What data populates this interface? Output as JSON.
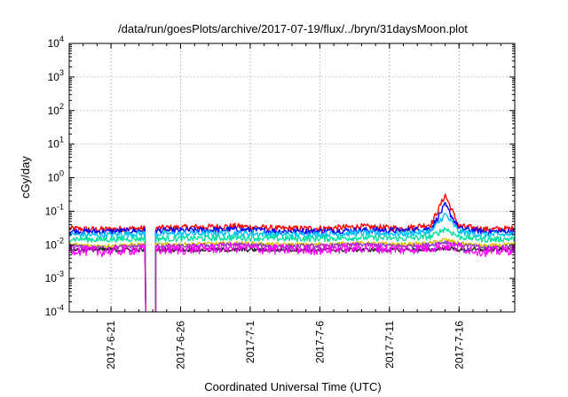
{
  "chart_data": {
    "type": "line",
    "title": "/data/run/goesPlots/archive/2017-07-19/flux/../bryn/31daysMoon.plot",
    "xlabel": "Coordinated Universal Time (UTC)",
    "ylabel": "cGy/day",
    "yscale": "log",
    "ylim": [
      0.0001,
      10000
    ],
    "xlim": [
      "2017-06-18T00:00",
      "2017-07-20T00:00"
    ],
    "grid": true,
    "legend": "none",
    "x_ticks": [
      "2017-6-21",
      "2017-6-26",
      "2017-7-1",
      "2017-7-6",
      "2017-7-11",
      "2017-7-16"
    ],
    "y_ticks": [
      {
        "base": "10",
        "exp": "-4"
      },
      {
        "base": "10",
        "exp": "-3"
      },
      {
        "base": "10",
        "exp": "-2"
      },
      {
        "base": "10",
        "exp": "-1"
      },
      {
        "base": "10",
        "exp": "0"
      },
      {
        "base": "10",
        "exp": "1"
      },
      {
        "base": "10",
        "exp": "2"
      },
      {
        "base": "10",
        "exp": "3"
      },
      {
        "base": "10",
        "exp": "4"
      }
    ],
    "gap": {
      "start": "2017-06-23T12:00",
      "end": "2017-06-24T04:00"
    },
    "series": [
      {
        "color": "#ff0000",
        "points": [
          [
            "2017-06-18",
            0.03
          ],
          [
            "2017-06-20",
            0.028
          ],
          [
            "2017-06-23",
            0.03
          ],
          [
            "2017-06-26",
            0.032
          ],
          [
            "2017-06-30",
            0.035
          ],
          [
            "2017-07-03",
            0.03
          ],
          [
            "2017-07-06",
            0.03
          ],
          [
            "2017-07-09",
            0.034
          ],
          [
            "2017-07-12",
            0.03
          ],
          [
            "2017-07-14",
            0.04
          ],
          [
            "2017-07-15",
            0.3
          ],
          [
            "2017-07-16",
            0.035
          ],
          [
            "2017-07-18",
            0.028
          ],
          [
            "2017-07-20",
            0.03
          ]
        ]
      },
      {
        "color": "#0000ff",
        "points": [
          [
            "2017-06-18",
            0.025
          ],
          [
            "2017-06-20",
            0.024
          ],
          [
            "2017-06-23",
            0.026
          ],
          [
            "2017-06-26",
            0.026
          ],
          [
            "2017-06-30",
            0.028
          ],
          [
            "2017-07-03",
            0.025
          ],
          [
            "2017-07-06",
            0.025
          ],
          [
            "2017-07-09",
            0.027
          ],
          [
            "2017-07-12",
            0.026
          ],
          [
            "2017-07-14",
            0.03
          ],
          [
            "2017-07-15",
            0.15
          ],
          [
            "2017-07-16",
            0.03
          ],
          [
            "2017-07-18",
            0.024
          ],
          [
            "2017-07-20",
            0.025
          ]
        ]
      },
      {
        "color": "#00c0ff",
        "points": [
          [
            "2017-06-18",
            0.02
          ],
          [
            "2017-06-20",
            0.019
          ],
          [
            "2017-06-23",
            0.021
          ],
          [
            "2017-06-26",
            0.021
          ],
          [
            "2017-06-30",
            0.022
          ],
          [
            "2017-07-03",
            0.02
          ],
          [
            "2017-07-06",
            0.02
          ],
          [
            "2017-07-09",
            0.022
          ],
          [
            "2017-07-12",
            0.021
          ],
          [
            "2017-07-14",
            0.024
          ],
          [
            "2017-07-15",
            0.08
          ],
          [
            "2017-07-16",
            0.024
          ],
          [
            "2017-07-18",
            0.019
          ],
          [
            "2017-07-20",
            0.02
          ]
        ]
      },
      {
        "color": "#00e0a0",
        "points": [
          [
            "2017-06-18",
            0.015
          ],
          [
            "2017-06-20",
            0.014
          ],
          [
            "2017-06-23",
            0.015
          ],
          [
            "2017-06-26",
            0.015
          ],
          [
            "2017-06-30",
            0.016
          ],
          [
            "2017-07-03",
            0.015
          ],
          [
            "2017-07-06",
            0.015
          ],
          [
            "2017-07-09",
            0.016
          ],
          [
            "2017-07-12",
            0.015
          ],
          [
            "2017-07-14",
            0.017
          ],
          [
            "2017-07-15",
            0.03
          ],
          [
            "2017-07-16",
            0.017
          ],
          [
            "2017-07-18",
            0.014
          ],
          [
            "2017-07-20",
            0.015
          ]
        ]
      },
      {
        "color": "#d8c000",
        "points": [
          [
            "2017-06-18",
            0.01
          ],
          [
            "2017-06-20",
            0.009
          ],
          [
            "2017-06-23",
            0.01
          ],
          [
            "2017-06-26",
            0.01
          ],
          [
            "2017-06-30",
            0.011
          ],
          [
            "2017-07-03",
            0.01
          ],
          [
            "2017-07-06",
            0.01
          ],
          [
            "2017-07-09",
            0.011
          ],
          [
            "2017-07-12",
            0.01
          ],
          [
            "2017-07-14",
            0.011
          ],
          [
            "2017-07-15",
            0.014
          ],
          [
            "2017-07-16",
            0.011
          ],
          [
            "2017-07-18",
            0.009
          ],
          [
            "2017-07-20",
            0.01
          ]
        ]
      },
      {
        "color": "#9040c0",
        "points": [
          [
            "2017-06-18",
            0.009
          ],
          [
            "2017-06-20",
            0.008
          ],
          [
            "2017-06-23",
            0.009
          ],
          [
            "2017-06-26",
            0.009
          ],
          [
            "2017-06-30",
            0.01
          ],
          [
            "2017-07-03",
            0.009
          ],
          [
            "2017-07-06",
            0.009
          ],
          [
            "2017-07-09",
            0.01
          ],
          [
            "2017-07-12",
            0.009
          ],
          [
            "2017-07-14",
            0.01
          ],
          [
            "2017-07-15",
            0.012
          ],
          [
            "2017-07-16",
            0.01
          ],
          [
            "2017-07-18",
            0.008
          ],
          [
            "2017-07-20",
            0.009
          ]
        ]
      },
      {
        "color": "#202020",
        "points": [
          [
            "2017-06-18",
            0.007
          ],
          [
            "2017-06-20",
            0.007
          ],
          [
            "2017-06-23",
            0.007
          ],
          [
            "2017-06-26",
            0.007
          ],
          [
            "2017-06-30",
            0.007
          ],
          [
            "2017-07-03",
            0.007
          ],
          [
            "2017-07-06",
            0.007
          ],
          [
            "2017-07-09",
            0.007
          ],
          [
            "2017-07-12",
            0.007
          ],
          [
            "2017-07-14",
            0.007
          ],
          [
            "2017-07-15",
            0.008
          ],
          [
            "2017-07-16",
            0.007
          ],
          [
            "2017-07-18",
            0.007
          ],
          [
            "2017-07-20",
            0.007
          ]
        ]
      },
      {
        "color": "#ff00ff",
        "points": [
          [
            "2017-06-18",
            0.007
          ],
          [
            "2017-06-20",
            0.006
          ],
          [
            "2017-06-23",
            0.007
          ],
          [
            "2017-06-26",
            0.007
          ],
          [
            "2017-06-30",
            0.008
          ],
          [
            "2017-07-03",
            0.007
          ],
          [
            "2017-07-06",
            0.007
          ],
          [
            "2017-07-09",
            0.008
          ],
          [
            "2017-07-12",
            0.007
          ],
          [
            "2017-07-14",
            0.008
          ],
          [
            "2017-07-15",
            0.009
          ],
          [
            "2017-07-16",
            0.008
          ],
          [
            "2017-07-18",
            0.006
          ],
          [
            "2017-07-20",
            0.007
          ]
        ]
      }
    ]
  }
}
